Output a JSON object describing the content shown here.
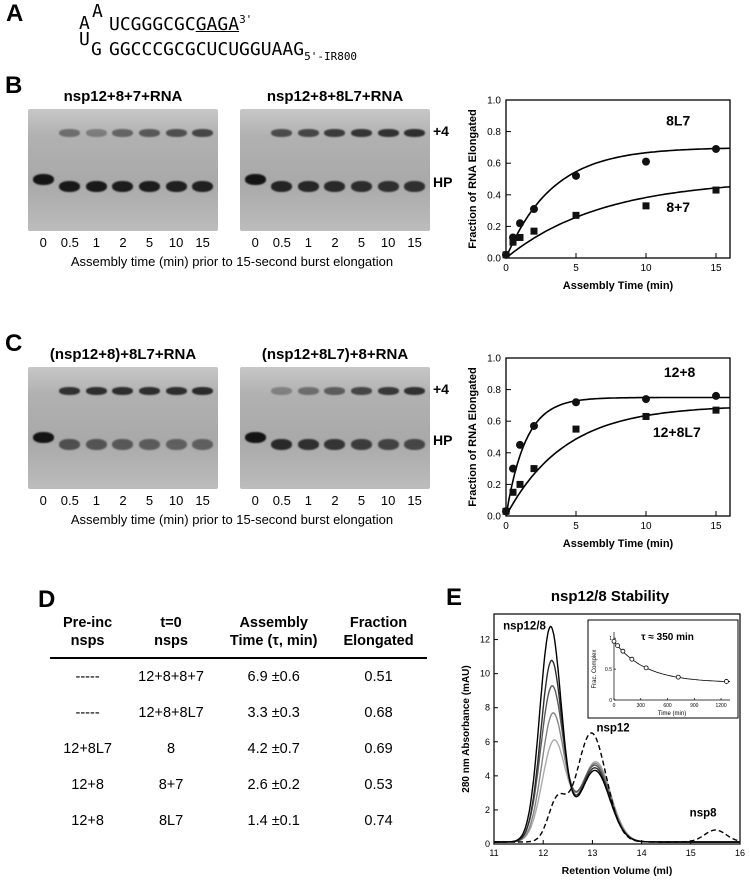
{
  "figure_labels": {
    "a": "A",
    "b": "B",
    "c": "C",
    "d": "D",
    "e": "E"
  },
  "panelA": {
    "loop_top": "A",
    "top_left": "A",
    "top_seq": "UCGGGCGC",
    "top_underlined": "GAGA",
    "top_sup": "3'",
    "bottom_left": "U",
    "loop_bottom": "G",
    "bottom_seq": "GGCCCGCGCUCUGGUAAG",
    "bottom_sub": "5'-IR800"
  },
  "panelB": {
    "band_plus4": "+4",
    "band_hp": "HP",
    "caption": "Assembly time (min) prior to 15-second burst elongation"
  },
  "panelC": {
    "band_plus4": "+4",
    "band_hp": "HP",
    "caption": "Assembly time (min) prior to 15-second burst elongation"
  },
  "gels": {
    "b_left": {
      "title": "nsp12+8+7+RNA",
      "lanes": [
        "0",
        "0.5",
        "1",
        "2",
        "5",
        "10",
        "15"
      ],
      "plus4": [
        0,
        0.42,
        0.33,
        0.48,
        0.55,
        0.6,
        0.66
      ],
      "hp": [
        0.95,
        0.92,
        0.92,
        0.9,
        0.9,
        0.88,
        0.88
      ]
    },
    "b_right": {
      "title": "nsp12+8+8L7+RNA",
      "lanes": [
        "0",
        "0.5",
        "1",
        "2",
        "5",
        "10",
        "15"
      ],
      "plus4": [
        0,
        0.62,
        0.66,
        0.72,
        0.76,
        0.78,
        0.8
      ],
      "hp": [
        0.95,
        0.85,
        0.84,
        0.82,
        0.8,
        0.78,
        0.78
      ]
    },
    "c_left": {
      "title": "(nsp12+8)+8L7+RNA",
      "lanes": [
        "0",
        "0.5",
        "1",
        "2",
        "5",
        "10",
        "15"
      ],
      "plus4": [
        0,
        0.78,
        0.8,
        0.8,
        0.8,
        0.8,
        0.82
      ],
      "hp": [
        0.95,
        0.58,
        0.55,
        0.52,
        0.5,
        0.48,
        0.48
      ]
    },
    "c_right": {
      "title": "(nsp12+8L7)+8+RNA",
      "lanes": [
        "0",
        "0.5",
        "1",
        "2",
        "5",
        "10",
        "15"
      ],
      "plus4": [
        0,
        0.3,
        0.42,
        0.52,
        0.66,
        0.74,
        0.78
      ],
      "hp": [
        0.95,
        0.82,
        0.78,
        0.75,
        0.7,
        0.66,
        0.64
      ]
    }
  },
  "table": {
    "headers": [
      [
        "Pre-inc",
        "nsps"
      ],
      [
        "t=0",
        "nsps"
      ],
      [
        "Assembly",
        "Time (τ, min)"
      ],
      [
        "Fraction",
        "Elongated"
      ]
    ],
    "rows": [
      [
        "-----",
        "12+8+8+7",
        "6.9 ±0.6",
        "0.51"
      ],
      [
        "-----",
        "12+8+8L7",
        "3.3 ±0.3",
        "0.68"
      ],
      [
        "12+8L7",
        "8",
        "4.2 ±0.7",
        "0.69"
      ],
      [
        "12+8",
        "8+7",
        "2.6 ±0.2",
        "0.53"
      ],
      [
        "12+8",
        "8L7",
        "1.4 ±0.1",
        "0.74"
      ]
    ]
  },
  "chart_data": [
    {
      "id": "kineticsB",
      "type": "scatter",
      "title": "",
      "xlabel": "Assembly Time (min)",
      "ylabel": "Fraction of RNA Elongated",
      "xlim": [
        0,
        16
      ],
      "ylim": [
        0,
        1.0
      ],
      "xticks": [
        0,
        5,
        10,
        15
      ],
      "yticks": [
        0,
        0.2,
        0.4,
        0.6,
        0.8,
        1.0
      ],
      "series": [
        {
          "name": "8L7",
          "marker": "circle",
          "amp": 0.7,
          "tau": 3.3,
          "x": [
            0,
            0.5,
            1,
            2,
            5,
            10,
            15
          ],
          "y": [
            0.02,
            0.13,
            0.22,
            0.31,
            0.52,
            0.61,
            0.69
          ],
          "label_x": 12.3,
          "label_y": 0.84
        },
        {
          "name": "8+7",
          "marker": "square",
          "amp": 0.5,
          "tau": 6.9,
          "x": [
            0,
            0.5,
            1,
            2,
            5,
            10,
            15
          ],
          "y": [
            0.02,
            0.1,
            0.13,
            0.17,
            0.27,
            0.33,
            0.43
          ],
          "label_x": 12.3,
          "label_y": 0.29
        }
      ]
    },
    {
      "id": "kineticsC",
      "type": "scatter",
      "title": "",
      "xlabel": "Assembly Time (min)",
      "ylabel": "Fraction of RNA Elongated",
      "xlim": [
        0,
        16
      ],
      "ylim": [
        0,
        1.0
      ],
      "xticks": [
        0,
        5,
        10,
        15
      ],
      "yticks": [
        0,
        0.2,
        0.4,
        0.6,
        0.8,
        1.0
      ],
      "series": [
        {
          "name": "12+8",
          "marker": "circle",
          "amp": 0.75,
          "tau": 1.4,
          "x": [
            0,
            0.5,
            1,
            2,
            5,
            10,
            15
          ],
          "y": [
            0.03,
            0.3,
            0.45,
            0.57,
            0.72,
            0.74,
            0.76
          ],
          "label_x": 12.4,
          "label_y": 0.88
        },
        {
          "name": "12+8L7",
          "marker": "square",
          "amp": 0.7,
          "tau": 4.2,
          "x": [
            0,
            0.5,
            1,
            2,
            5,
            10,
            15
          ],
          "y": [
            0.03,
            0.15,
            0.2,
            0.3,
            0.55,
            0.63,
            0.67
          ],
          "label_x": 12.2,
          "label_y": 0.5
        }
      ]
    },
    {
      "id": "stability",
      "type": "line",
      "title": "nsp12/8 Stability",
      "xlabel": "Retention Volume (ml)",
      "ylabel": "280 nm Absorbance (mAU)",
      "xlim": [
        11,
        16
      ],
      "ylim": [
        0,
        13.5
      ],
      "xticks": [
        11,
        12,
        13,
        14,
        15,
        16
      ],
      "yticks": [
        0,
        2,
        4,
        6,
        8,
        10,
        12
      ],
      "series": [
        {
          "color": "#ababab",
          "dash": false,
          "peaks": [
            {
              "c": 12.22,
              "h": 5.9,
              "w": 0.24
            },
            {
              "c": 13.07,
              "h": 4.7,
              "w": 0.3
            }
          ]
        },
        {
          "color": "#858585",
          "dash": false,
          "peaks": [
            {
              "c": 12.2,
              "h": 7.5,
              "w": 0.23
            },
            {
              "c": 13.06,
              "h": 4.6,
              "w": 0.3
            }
          ]
        },
        {
          "color": "#5a5a5a",
          "dash": false,
          "peaks": [
            {
              "c": 12.18,
              "h": 9.1,
              "w": 0.23
            },
            {
              "c": 13.05,
              "h": 4.5,
              "w": 0.3
            }
          ]
        },
        {
          "color": "#2e2e2e",
          "dash": false,
          "peaks": [
            {
              "c": 12.17,
              "h": 10.6,
              "w": 0.22
            },
            {
              "c": 13.05,
              "h": 4.35,
              "w": 0.3
            }
          ]
        },
        {
          "color": "#000000",
          "dash": false,
          "peaks": [
            {
              "c": 12.15,
              "h": 12.6,
              "w": 0.22
            },
            {
              "c": 13.05,
              "h": 4.2,
              "w": 0.3
            }
          ]
        },
        {
          "color": "#000000",
          "dash": true,
          "peaks": [
            {
              "c": 12.28,
              "h": 2.3,
              "w": 0.18
            },
            {
              "c": 12.98,
              "h": 6.4,
              "w": 0.3
            },
            {
              "c": 15.5,
              "h": 0.7,
              "w": 0.22
            }
          ]
        }
      ],
      "annotations": [
        {
          "text": "nsp12/8",
          "x": 11.62,
          "y": 12.6
        },
        {
          "text": "nsp12",
          "x": 13.42,
          "y": 6.6
        },
        {
          "text": "nsp8",
          "x": 15.25,
          "y": 1.6
        }
      ],
      "inset": {
        "ylabel": "Frac. Complex",
        "xlabel": "Time (min)",
        "tau_label": "τ ≈ 350 min",
        "xlim": [
          0,
          1300
        ],
        "ylim": [
          0,
          1.1
        ],
        "xticks": [
          0,
          300,
          600,
          900,
          1200
        ],
        "yticks": [
          0,
          0.5,
          1
        ],
        "x": [
          0,
          40,
          100,
          200,
          360,
          720,
          1260
        ],
        "y": [
          0.95,
          0.88,
          0.79,
          0.66,
          0.52,
          0.37,
          0.3
        ],
        "fit": {
          "a": 0.28,
          "b": 0.67,
          "tau": 350
        }
      }
    }
  ]
}
